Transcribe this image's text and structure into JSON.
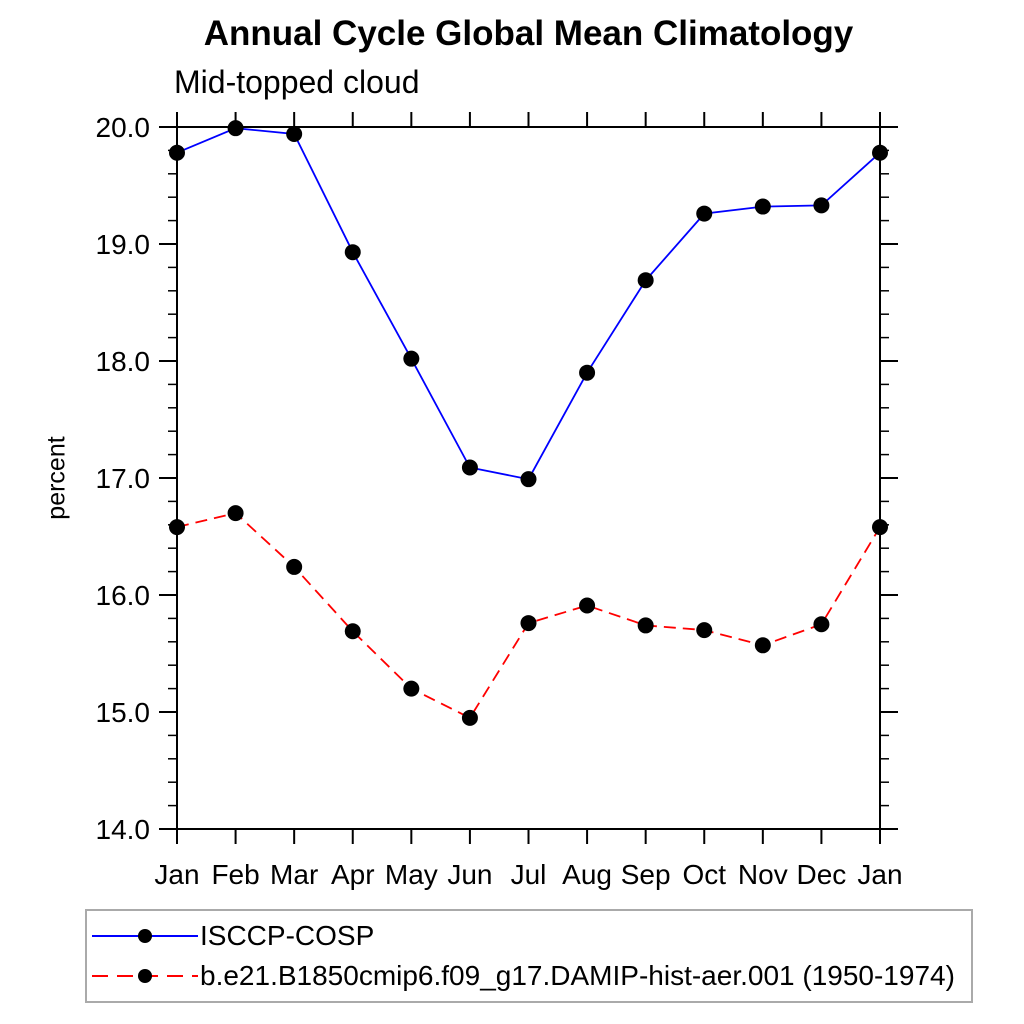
{
  "chart_data": {
    "type": "line",
    "title": "Annual Cycle Global Mean Climatology",
    "subtitle": "Mid-topped cloud",
    "ylabel": "percent",
    "xlabel": "",
    "categories": [
      "Jan",
      "Feb",
      "Mar",
      "Apr",
      "May",
      "Jun",
      "Jul",
      "Aug",
      "Sep",
      "Oct",
      "Nov",
      "Dec",
      "Jan"
    ],
    "ylim": [
      14.0,
      20.0
    ],
    "ytick_interval_major": 1.0,
    "ytick_interval_minor": 0.2,
    "ytick_labels": [
      "20.0",
      "19.0",
      "18.0",
      "17.0",
      "16.0",
      "15.0",
      "14.0"
    ],
    "grid": false,
    "legend_position": "below-plot-left",
    "series": [
      {
        "name": "ISCCP-COSP",
        "color": "#0000ff",
        "line_style": "solid",
        "marker": "filled-circle",
        "marker_color": "#000000",
        "values": [
          19.78,
          19.99,
          19.94,
          18.93,
          18.02,
          17.09,
          16.99,
          17.9,
          18.69,
          19.26,
          19.32,
          19.33,
          19.78
        ]
      },
      {
        "name": "b.e21.B1850cmip6.f09_g17.DAMIP-hist-aer.001 (1950-1974)",
        "color": "#ff0000",
        "line_style": "dashed",
        "marker": "filled-circle",
        "marker_color": "#000000",
        "values": [
          16.58,
          16.7,
          16.24,
          15.69,
          15.2,
          14.95,
          15.76,
          15.91,
          15.74,
          15.7,
          15.57,
          15.75,
          16.58
        ]
      }
    ]
  },
  "colors": {
    "axis": "#000000",
    "background": "#ffffff",
    "legend_border": "#aaaaaa"
  }
}
